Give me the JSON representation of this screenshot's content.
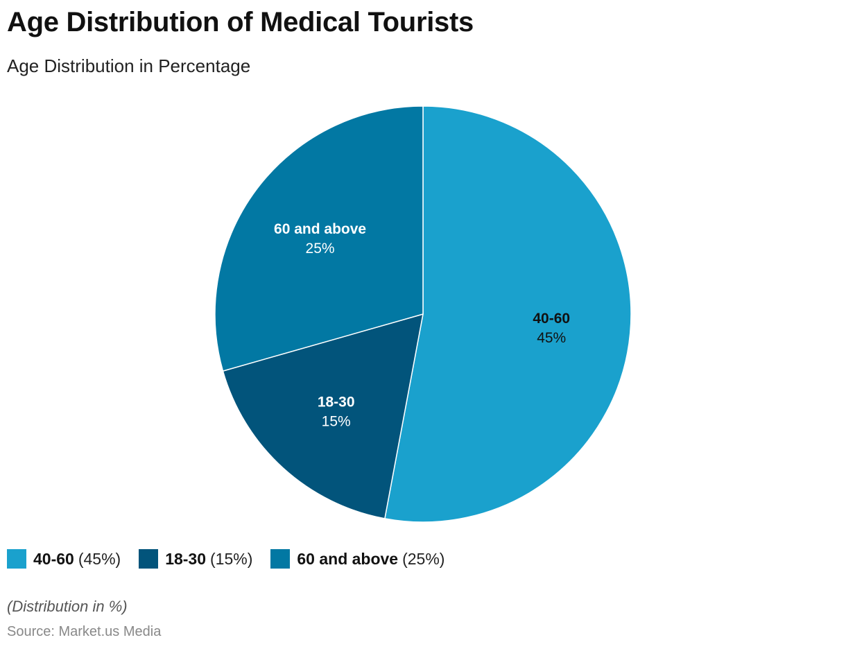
{
  "header": {
    "title": "Age Distribution of Medical Tourists",
    "subtitle": "Age Distribution in Percentage"
  },
  "chart_data": {
    "type": "pie",
    "title": "Age Distribution of Medical Tourists",
    "subtitle": "Age Distribution in Percentage",
    "slices": [
      {
        "label": "40-60",
        "value": 45,
        "display": "45%",
        "legend_value": "(45%)",
        "color": "#1aa1cd",
        "label_color": "#111111"
      },
      {
        "label": "18-30",
        "value": 15,
        "display": "15%",
        "legend_value": "(15%)",
        "color": "#02547b",
        "label_color": "#ffffff"
      },
      {
        "label": "60 and above",
        "value": 25,
        "display": "25%",
        "legend_value": "(25%)",
        "color": "#0278a3",
        "label_color": "#ffffff"
      }
    ],
    "start_angle_deg": 0,
    "direction": "clockwise",
    "legend_position": "bottom-left"
  },
  "footer": {
    "note": "(Distribution in %)",
    "source": "Source: Market.us Media"
  }
}
